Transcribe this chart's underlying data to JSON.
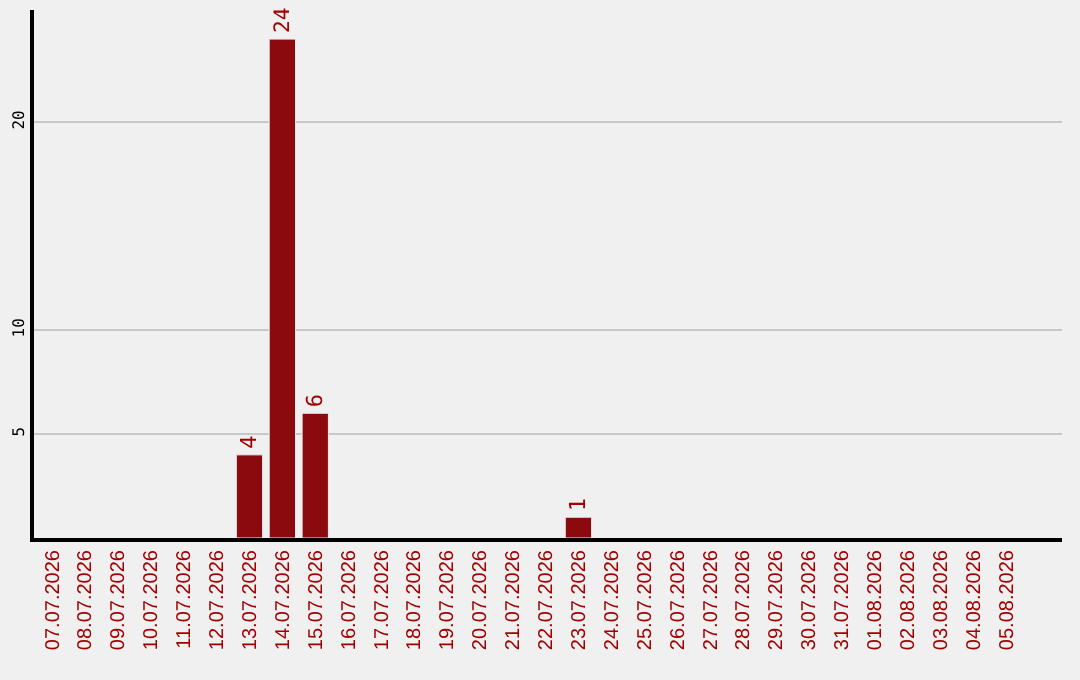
{
  "chart_data": {
    "type": "bar",
    "categories": [
      "07.07.2026",
      "08.07.2026",
      "09.07.2026",
      "10.07.2026",
      "11.07.2026",
      "12.07.2026",
      "13.07.2026",
      "14.07.2026",
      "15.07.2026",
      "16.07.2026",
      "17.07.2026",
      "18.07.2026",
      "19.07.2026",
      "20.07.2026",
      "21.07.2026",
      "22.07.2026",
      "23.07.2026",
      "24.07.2026",
      "25.07.2026",
      "26.07.2026",
      "27.07.2026",
      "28.07.2026",
      "29.07.2026",
      "30.07.2026",
      "31.07.2026",
      "01.08.2026",
      "02.08.2026",
      "03.08.2026",
      "04.08.2026",
      "05.08.2026"
    ],
    "values": [
      null,
      null,
      null,
      null,
      null,
      null,
      4,
      24,
      6,
      null,
      null,
      null,
      null,
      null,
      null,
      null,
      1,
      null,
      null,
      null,
      null,
      null,
      null,
      null,
      null,
      null,
      null,
      null,
      null,
      null
    ],
    "value_labels": [
      null,
      null,
      null,
      null,
      null,
      null,
      "4",
      "24",
      "6",
      null,
      null,
      null,
      null,
      null,
      null,
      null,
      "1",
      null,
      null,
      null,
      null,
      null,
      null,
      null,
      null,
      null,
      null,
      null,
      null,
      null
    ],
    "color": "#8b0a0e",
    "ylim": [
      0,
      25.4
    ],
    "yticks": [
      5,
      10,
      20
    ],
    "grid": "y",
    "legend": false
  }
}
